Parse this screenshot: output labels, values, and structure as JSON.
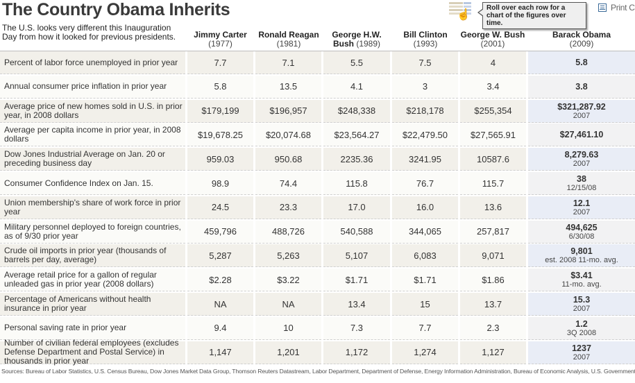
{
  "header": {
    "title": "The Country Obama Inherits",
    "subtitle": "The U.S. looks very different this Inauguration Day from how it looked for previous presidents.",
    "tooltip": "Roll over each row for a chart of the figures over time.",
    "print_label": "Print C"
  },
  "icons": {
    "rollover": "table-hand-cursor-icon",
    "print": "printer-icon"
  },
  "colors": {
    "row_odd": "#f2f0ea",
    "row_even": "#fbfbf8",
    "obama_odd": "#e9edf6",
    "obama_even": "#f2f2f3"
  },
  "columns": [
    {
      "name": "Jimmy Carter",
      "year": "(1977)"
    },
    {
      "name": "Ronald Reagan",
      "year": "(1981)"
    },
    {
      "name": "George H.W. Bush",
      "name_line1": "George H.W.",
      "name_line2": "Bush",
      "year": "(1989)"
    },
    {
      "name": "Bill Clinton",
      "year": "(1993)"
    },
    {
      "name": "George W. Bush",
      "year": "(2001)"
    },
    {
      "name": "Barack Obama",
      "year": "(2009)"
    }
  ],
  "rows": [
    {
      "label": "Percent of labor force unemployed in prior year",
      "values": [
        "7.7",
        "7.1",
        "5.5",
        "7.5",
        "4"
      ],
      "obama": "5.8",
      "obama_note": ""
    },
    {
      "label": "Annual consumer price inflation in prior year",
      "values": [
        "5.8",
        "13.5",
        "4.1",
        "3",
        "3.4"
      ],
      "obama": "3.8",
      "obama_note": ""
    },
    {
      "label": "Average price of new homes sold in U.S. in prior year, in 2008 dollars",
      "values": [
        "$179,199",
        "$196,957",
        "$248,338",
        "$218,178",
        "$255,354"
      ],
      "obama": "$321,287.92",
      "obama_note": "2007"
    },
    {
      "label": "Average per capita income in prior year, in 2008 dollars",
      "values": [
        "$19,678.25",
        "$20,074.68",
        "$23,564.27",
        "$22,479.50",
        "$27,565.91"
      ],
      "obama": "$27,461.10",
      "obama_note": ""
    },
    {
      "label": "Dow Jones Industrial Average on Jan. 20 or preceding business day",
      "values": [
        "959.03",
        "950.68",
        "2235.36",
        "3241.95",
        "10587.6"
      ],
      "obama": "8,279.63",
      "obama_note": "2007"
    },
    {
      "label": "Consumer Confidence Index on Jan. 15.",
      "values": [
        "98.9",
        "74.4",
        "115.8",
        "76.7",
        "115.7"
      ],
      "obama": "38",
      "obama_note": "12/15/08"
    },
    {
      "label": "Union membership's share of work force in prior year",
      "values": [
        "24.5",
        "23.3",
        "17.0",
        "16.0",
        "13.6"
      ],
      "obama": "12.1",
      "obama_note": "2007"
    },
    {
      "label": "Military personnel deployed to foreign countries, as of 9/30 prior year",
      "values": [
        "459,796",
        "488,726",
        "540,588",
        "344,065",
        "257,817"
      ],
      "obama": "494,625",
      "obama_note": "6/30/08"
    },
    {
      "label": "Crude oil imports in prior year (thousands of barrels per day, average)",
      "values": [
        "5,287",
        "5,263",
        "5,107",
        "6,083",
        "9,071"
      ],
      "obama": "9,801",
      "obama_note": "est. 2008 11-mo. avg."
    },
    {
      "label": "Average retail price for a gallon of regular unleaded gas in prior year (2008 dollars)",
      "values": [
        "$2.28",
        "$3.22",
        "$1.71",
        "$1.71",
        "$1.86"
      ],
      "obama": "$3.41",
      "obama_note": "11-mo. avg."
    },
    {
      "label": "Percentage of Americans without health insurance in prior year",
      "values": [
        "NA",
        "NA",
        "13.4",
        "15",
        "13.7"
      ],
      "obama": "15.3",
      "obama_note": "2007"
    },
    {
      "label": "Personal saving rate in prior year",
      "values": [
        "9.4",
        "10",
        "7.3",
        "7.7",
        "2.3"
      ],
      "obama": "1.2",
      "obama_note": "3Q 2008"
    },
    {
      "label": "Number of civilian federal employees (excludes Defense Department and Postal Service) in thousands in prior year",
      "values": [
        "1,147",
        "1,201",
        "1,172",
        "1,274",
        "1,127"
      ],
      "obama": "1237",
      "obama_note": "2007"
    }
  ],
  "sources": "Sources: Bureau of Labor Statistics, U.S. Census Bureau, Dow Jones Market Data Group, Thomson Reuters Datastream, Labor Department, Department of Defense, Energy Information Administration, Bureau of Economic Analysis, U.S. Government"
}
